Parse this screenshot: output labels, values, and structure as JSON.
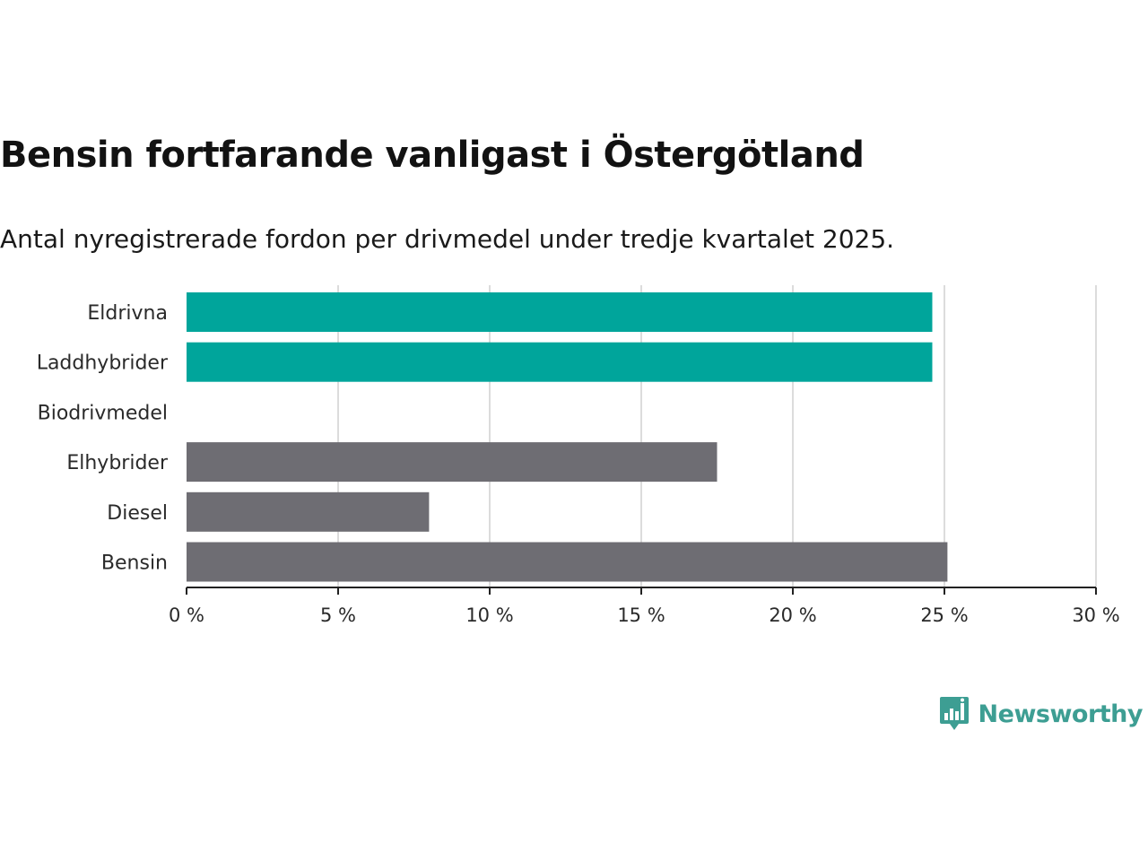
{
  "chart_data": {
    "type": "bar",
    "orientation": "horizontal",
    "title": "Bensin fortfarande vanligast i Östergötland",
    "subtitle": "Antal nyregistrerade fordon per drivmedel under tredje kvartalet 2025.",
    "categories": [
      "Eldrivna",
      "Laddhybrider",
      "Biodrivmedel",
      "Elhybrider",
      "Diesel",
      "Bensin"
    ],
    "values": [
      24.6,
      24.6,
      0,
      17.5,
      8.0,
      25.1
    ],
    "colors": [
      "#00a59b",
      "#00a59b",
      "#6e6d73",
      "#6e6d73",
      "#6e6d73",
      "#6e6d73"
    ],
    "xlim": [
      0,
      30
    ],
    "xticks": [
      0,
      5,
      10,
      15,
      20,
      25,
      30
    ],
    "xtick_labels": [
      "0 %",
      "5 %",
      "10 %",
      "15 %",
      "20 %",
      "25 %",
      "30 %"
    ],
    "xlabel": "",
    "ylabel": "",
    "grid": true,
    "unit": "%"
  },
  "brand": {
    "name": "Newsworthy",
    "color": "#3d9e93"
  }
}
